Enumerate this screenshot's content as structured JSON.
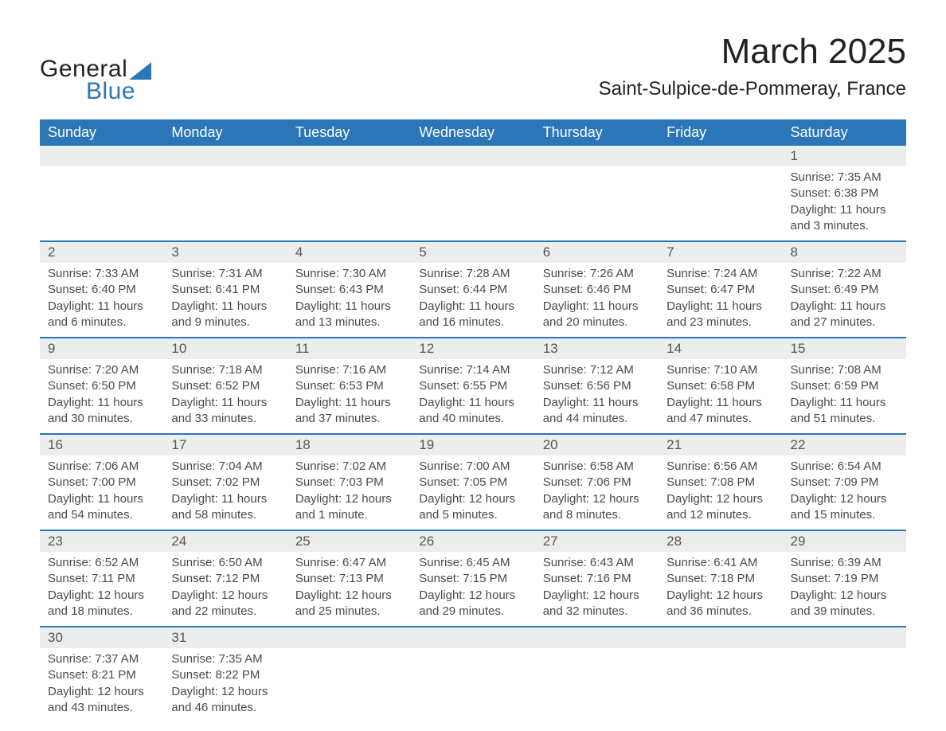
{
  "brand": {
    "part1": "General",
    "part2": "Blue",
    "accent_color": "#2a76b8"
  },
  "title": "March 2025",
  "location": "Saint-Sulpice-de-Pommeray, France",
  "day_headers": [
    "Sunday",
    "Monday",
    "Tuesday",
    "Wednesday",
    "Thursday",
    "Friday",
    "Saturday"
  ],
  "layout": {
    "first_weekday_index": 6,
    "days_in_month": 31
  },
  "style": {
    "header_bg": "#2a76b8",
    "header_fg": "#ffffff",
    "daynum_bg": "#eceeee",
    "row_divider": "#2a76b8",
    "body_text": "#4a4a4a",
    "font_family": "Arial",
    "title_fontsize": 44,
    "location_fontsize": 24,
    "header_fontsize": 18,
    "daynum_fontsize": 17,
    "body_fontsize": 15
  },
  "days": {
    "1": {
      "sunrise": "7:35 AM",
      "sunset": "6:38 PM",
      "daylight": "11 hours and 3 minutes."
    },
    "2": {
      "sunrise": "7:33 AM",
      "sunset": "6:40 PM",
      "daylight": "11 hours and 6 minutes."
    },
    "3": {
      "sunrise": "7:31 AM",
      "sunset": "6:41 PM",
      "daylight": "11 hours and 9 minutes."
    },
    "4": {
      "sunrise": "7:30 AM",
      "sunset": "6:43 PM",
      "daylight": "11 hours and 13 minutes."
    },
    "5": {
      "sunrise": "7:28 AM",
      "sunset": "6:44 PM",
      "daylight": "11 hours and 16 minutes."
    },
    "6": {
      "sunrise": "7:26 AM",
      "sunset": "6:46 PM",
      "daylight": "11 hours and 20 minutes."
    },
    "7": {
      "sunrise": "7:24 AM",
      "sunset": "6:47 PM",
      "daylight": "11 hours and 23 minutes."
    },
    "8": {
      "sunrise": "7:22 AM",
      "sunset": "6:49 PM",
      "daylight": "11 hours and 27 minutes."
    },
    "9": {
      "sunrise": "7:20 AM",
      "sunset": "6:50 PM",
      "daylight": "11 hours and 30 minutes."
    },
    "10": {
      "sunrise": "7:18 AM",
      "sunset": "6:52 PM",
      "daylight": "11 hours and 33 minutes."
    },
    "11": {
      "sunrise": "7:16 AM",
      "sunset": "6:53 PM",
      "daylight": "11 hours and 37 minutes."
    },
    "12": {
      "sunrise": "7:14 AM",
      "sunset": "6:55 PM",
      "daylight": "11 hours and 40 minutes."
    },
    "13": {
      "sunrise": "7:12 AM",
      "sunset": "6:56 PM",
      "daylight": "11 hours and 44 minutes."
    },
    "14": {
      "sunrise": "7:10 AM",
      "sunset": "6:58 PM",
      "daylight": "11 hours and 47 minutes."
    },
    "15": {
      "sunrise": "7:08 AM",
      "sunset": "6:59 PM",
      "daylight": "11 hours and 51 minutes."
    },
    "16": {
      "sunrise": "7:06 AM",
      "sunset": "7:00 PM",
      "daylight": "11 hours and 54 minutes."
    },
    "17": {
      "sunrise": "7:04 AM",
      "sunset": "7:02 PM",
      "daylight": "11 hours and 58 minutes."
    },
    "18": {
      "sunrise": "7:02 AM",
      "sunset": "7:03 PM",
      "daylight": "12 hours and 1 minute."
    },
    "19": {
      "sunrise": "7:00 AM",
      "sunset": "7:05 PM",
      "daylight": "12 hours and 5 minutes."
    },
    "20": {
      "sunrise": "6:58 AM",
      "sunset": "7:06 PM",
      "daylight": "12 hours and 8 minutes."
    },
    "21": {
      "sunrise": "6:56 AM",
      "sunset": "7:08 PM",
      "daylight": "12 hours and 12 minutes."
    },
    "22": {
      "sunrise": "6:54 AM",
      "sunset": "7:09 PM",
      "daylight": "12 hours and 15 minutes."
    },
    "23": {
      "sunrise": "6:52 AM",
      "sunset": "7:11 PM",
      "daylight": "12 hours and 18 minutes."
    },
    "24": {
      "sunrise": "6:50 AM",
      "sunset": "7:12 PM",
      "daylight": "12 hours and 22 minutes."
    },
    "25": {
      "sunrise": "6:47 AM",
      "sunset": "7:13 PM",
      "daylight": "12 hours and 25 minutes."
    },
    "26": {
      "sunrise": "6:45 AM",
      "sunset": "7:15 PM",
      "daylight": "12 hours and 29 minutes."
    },
    "27": {
      "sunrise": "6:43 AM",
      "sunset": "7:16 PM",
      "daylight": "12 hours and 32 minutes."
    },
    "28": {
      "sunrise": "6:41 AM",
      "sunset": "7:18 PM",
      "daylight": "12 hours and 36 minutes."
    },
    "29": {
      "sunrise": "6:39 AM",
      "sunset": "7:19 PM",
      "daylight": "12 hours and 39 minutes."
    },
    "30": {
      "sunrise": "7:37 AM",
      "sunset": "8:21 PM",
      "daylight": "12 hours and 43 minutes."
    },
    "31": {
      "sunrise": "7:35 AM",
      "sunset": "8:22 PM",
      "daylight": "12 hours and 46 minutes."
    }
  },
  "labels": {
    "sunrise": "Sunrise: ",
    "sunset": "Sunset: ",
    "daylight": "Daylight: "
  }
}
